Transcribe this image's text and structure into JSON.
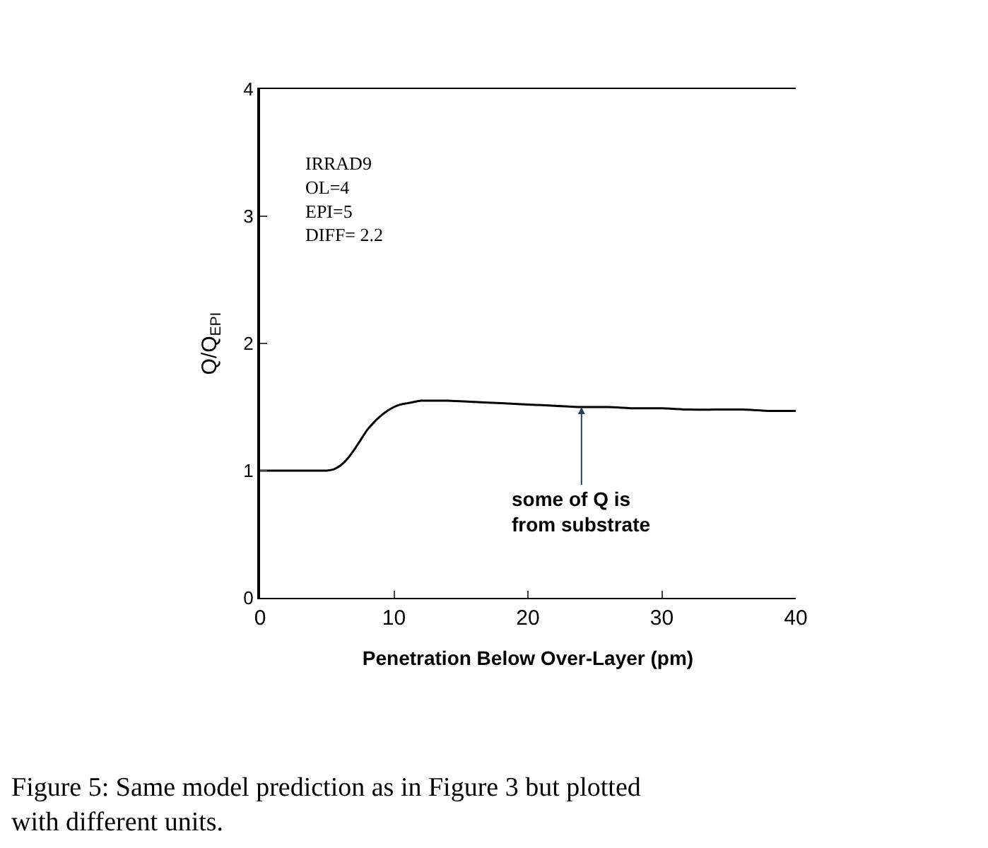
{
  "chart_data": {
    "type": "line",
    "xlabel": "Penetration Below Over-Layer (pm)",
    "ylabel": "Q/Q$_{EPI}$",
    "x": [
      0,
      1,
      2,
      3,
      4,
      5,
      5.5,
      6,
      6.5,
      7,
      7.5,
      8,
      8.5,
      9,
      9.5,
      10,
      10.5,
      11,
      11.5,
      12,
      13,
      14,
      16,
      18,
      20,
      22,
      24,
      26,
      28,
      30,
      32,
      34,
      36,
      38,
      40
    ],
    "series": [
      {
        "color": "#000000",
        "values": [
          1,
          1,
          1,
          1,
          1,
          1,
          1.01,
          1.04,
          1.09,
          1.16,
          1.24,
          1.32,
          1.38,
          1.43,
          1.47,
          1.5,
          1.52,
          1.53,
          1.54,
          1.55,
          1.55,
          1.55,
          1.54,
          1.53,
          1.52,
          1.51,
          1.5,
          1.5,
          1.49,
          1.49,
          1.48,
          1.48,
          1.48,
          1.47,
          1.47
        ]
      }
    ],
    "xlim": [
      0,
      40
    ],
    "xticks": [
      0,
      10,
      20,
      30,
      40
    ],
    "ylim": [
      0,
      4
    ],
    "yticks": [
      0,
      1,
      2,
      3,
      4
    ],
    "marker": "none",
    "line_style": "solid",
    "annotations": [
      "IRRAD9\nOL=4\nEPI=5\nDIFF= 2.2",
      {
        "text": "some of Q is\nfrom substrate",
        "x": 24,
        "y": 1.5
      },
      "Figure 5: Same model prediction as in Figure 3 but plotted\nwith different units."
    ]
  }
}
